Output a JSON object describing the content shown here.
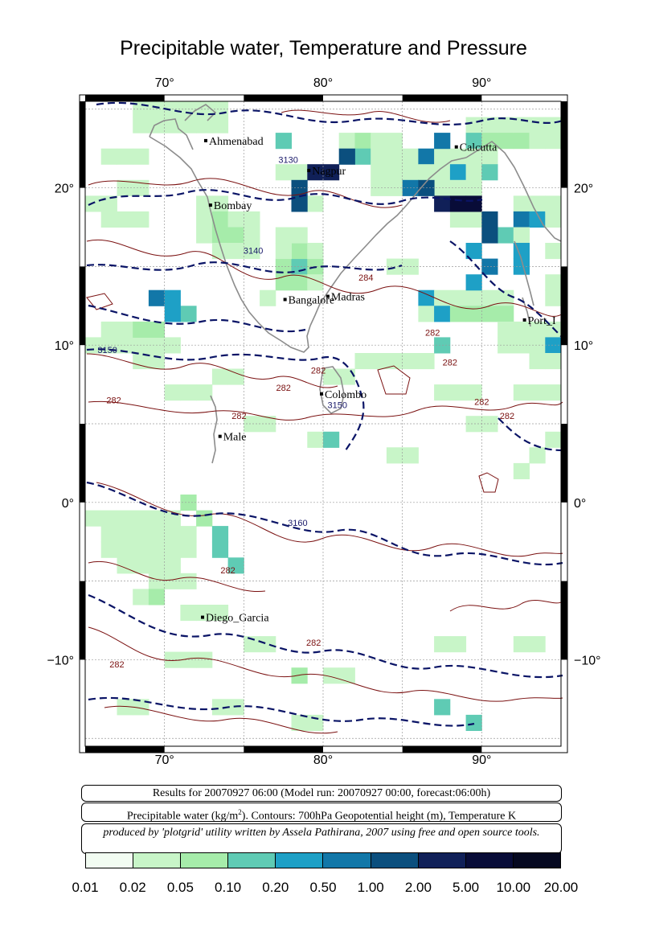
{
  "title": "Precipitable water, Temperature and Pressure",
  "axes": {
    "lon_range": [
      65,
      95
    ],
    "lat_range": [
      -15.5,
      25.5
    ],
    "lon_ticks": [
      {
        "v": 70,
        "label": "70°"
      },
      {
        "v": 80,
        "label": "80°"
      },
      {
        "v": 90,
        "label": "90°"
      }
    ],
    "lat_ticks": [
      {
        "v": 20,
        "label": "20°"
      },
      {
        "v": 10,
        "label": "10°"
      },
      {
        "v": 0,
        "label": "0°"
      },
      {
        "v": -10,
        "label": "−10°"
      }
    ]
  },
  "cities": [
    {
      "name": "Ahmedabad",
      "display": "Ahmenabad",
      "lon": 72.6,
      "lat": 23.0
    },
    {
      "name": "Nagpur",
      "display": "Nagpur",
      "lon": 79.1,
      "lat": 21.1
    },
    {
      "name": "Calcutta",
      "display": "Calcutta",
      "lon": 88.4,
      "lat": 22.6
    },
    {
      "name": "Bombay",
      "display": "Bombay",
      "lon": 72.9,
      "lat": 18.9
    },
    {
      "name": "Bangalore",
      "display": "Bangalore",
      "lon": 77.6,
      "lat": 12.9
    },
    {
      "name": "Madras",
      "display": "Madras",
      "lon": 80.3,
      "lat": 13.1
    },
    {
      "name": "Port_Blair",
      "display": "Port_I",
      "lon": 92.7,
      "lat": 11.6
    },
    {
      "name": "Colombo",
      "display": "Colombo",
      "lon": 79.9,
      "lat": 6.9
    },
    {
      "name": "Male",
      "display": "Male",
      "lon": 73.5,
      "lat": 4.2
    },
    {
      "name": "Diego_Garcia",
      "display": "Diego_Garcia",
      "lon": 72.4,
      "lat": -7.3
    }
  ],
  "contour_labels": [
    {
      "text": "3130",
      "lon": 77.8,
      "lat": 21.6,
      "color": "#1a1a6a"
    },
    {
      "text": "3140",
      "lon": 75.6,
      "lat": 15.8,
      "color": "#1a1a6a"
    },
    {
      "text": "3150",
      "lon": 66.4,
      "lat": 9.5,
      "color": "#1a1a6a"
    },
    {
      "text": "3150",
      "lon": 80.9,
      "lat": 6.0,
      "color": "#1a1a6a"
    },
    {
      "text": "3160",
      "lon": 78.4,
      "lat": -1.5,
      "color": "#1a1a6a"
    },
    {
      "text": "284",
      "lon": 82.7,
      "lat": 14.1,
      "color": "#7a1010"
    },
    {
      "text": "282",
      "lon": 66.8,
      "lat": 6.3,
      "color": "#7a1010"
    },
    {
      "text": "282",
      "lon": 77.5,
      "lat": 7.1,
      "color": "#7a1010"
    },
    {
      "text": "282",
      "lon": 74.7,
      "lat": 5.3,
      "color": "#7a1010"
    },
    {
      "text": "282",
      "lon": 79.7,
      "lat": 8.2,
      "color": "#7a1010"
    },
    {
      "text": "282",
      "lon": 86.9,
      "lat": 10.6,
      "color": "#7a1010"
    },
    {
      "text": "282",
      "lon": 88.0,
      "lat": 8.7,
      "color": "#7a1010"
    },
    {
      "text": "282",
      "lon": 90.0,
      "lat": 6.2,
      "color": "#7a1010"
    },
    {
      "text": "282",
      "lon": 91.6,
      "lat": 5.3,
      "color": "#7a1010"
    },
    {
      "text": "282",
      "lon": 74.0,
      "lat": -4.5,
      "color": "#7a1010"
    },
    {
      "text": "282",
      "lon": 79.4,
      "lat": -9.1,
      "color": "#7a1010"
    },
    {
      "text": "282",
      "lon": 67.0,
      "lat": -10.5,
      "color": "#7a1010"
    }
  ],
  "info": {
    "line1": "Results for 20070927 06:00 (Model run: 20070927 00:00, forecast:06:00h)",
    "line2_prefix": "Precipitable water (kg/m",
    "line2_sup": "2",
    "line2_suffix": ").  Contours: 700hPa Geopotential height (m), Temperature K",
    "line3": "produced by 'plotgrid' utility written by Assela Pathirana, 2007 using free and open source tools."
  },
  "colorbar": {
    "colors": [
      "#f2fcf2",
      "#c8f5c8",
      "#a6ecaa",
      "#5fcbb4",
      "#1ea0c6",
      "#1277a8",
      "#0b4f7e",
      "#102058",
      "#080c38",
      "#050820"
    ],
    "labels": [
      "0.01",
      "0.02",
      "0.05",
      "0.10",
      "0.20",
      "0.50",
      "1.00",
      "2.00",
      "5.00",
      "10.00",
      "20.00"
    ]
  }
}
